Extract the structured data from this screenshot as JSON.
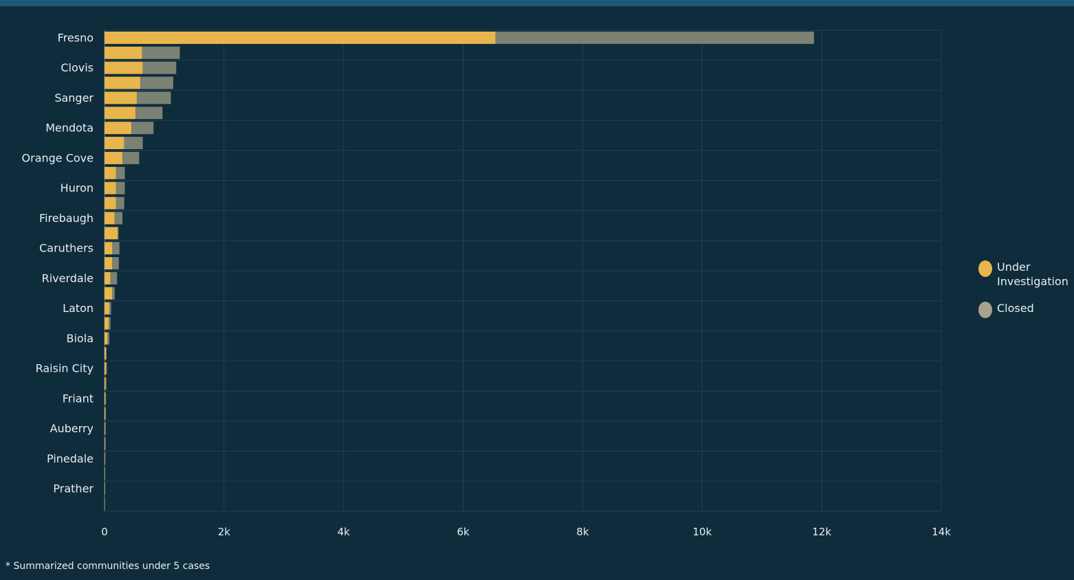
{
  "colors": {
    "background": "#0f2c3c",
    "top_strip": "#1d5878",
    "under_investigation": "#e8b64c",
    "closed": "#7b8173",
    "grid": "#1f4252",
    "text": "#e8eef2"
  },
  "legend": {
    "items": [
      {
        "label_line1": "Under",
        "label_line2": "Investigation",
        "color": "#e8b64c"
      },
      {
        "label_line1": "Closed",
        "label_line2": "",
        "color": "#a8a38e"
      }
    ]
  },
  "footnote": "* Summarized communities under 5 cases",
  "chart_data": {
    "type": "bar",
    "orientation": "horizontal",
    "stacked": true,
    "xlim": [
      0,
      14000
    ],
    "xticks": [
      {
        "value": 0,
        "label": "0"
      },
      {
        "value": 2000,
        "label": "2k"
      },
      {
        "value": 4000,
        "label": "4k"
      },
      {
        "value": 6000,
        "label": "6k"
      },
      {
        "value": 8000,
        "label": "8k"
      },
      {
        "value": 10000,
        "label": "10k"
      },
      {
        "value": 12000,
        "label": "12k"
      },
      {
        "value": 14000,
        "label": "14k"
      }
    ],
    "grid": true,
    "legend_position": "right",
    "categories": [
      "Fresno",
      "",
      "Clovis",
      "",
      "Sanger",
      "",
      "Mendota",
      "",
      "Orange Cove",
      "",
      "Huron",
      "",
      "Firebaugh",
      "",
      "Caruthers",
      "",
      "Riverdale",
      "",
      "Laton",
      "",
      "Biola",
      "",
      "Raisin City",
      "",
      "Friant",
      "",
      "Auberry",
      "",
      "Pinedale",
      "",
      "Prather",
      ""
    ],
    "series": [
      {
        "name": "Under Investigation",
        "values": [
          6540,
          630,
          640,
          600,
          540,
          520,
          450,
          330,
          300,
          190,
          190,
          190,
          170,
          220,
          130,
          130,
          100,
          130,
          80,
          70,
          50,
          25,
          25,
          20,
          15,
          15,
          10,
          10,
          8,
          5,
          5,
          3
        ]
      },
      {
        "name": "Closed",
        "values": [
          5330,
          630,
          560,
          550,
          570,
          450,
          370,
          310,
          280,
          150,
          150,
          140,
          130,
          15,
          120,
          110,
          110,
          40,
          30,
          30,
          30,
          10,
          15,
          10,
          10,
          8,
          10,
          8,
          5,
          5,
          5,
          2
        ]
      }
    ]
  }
}
